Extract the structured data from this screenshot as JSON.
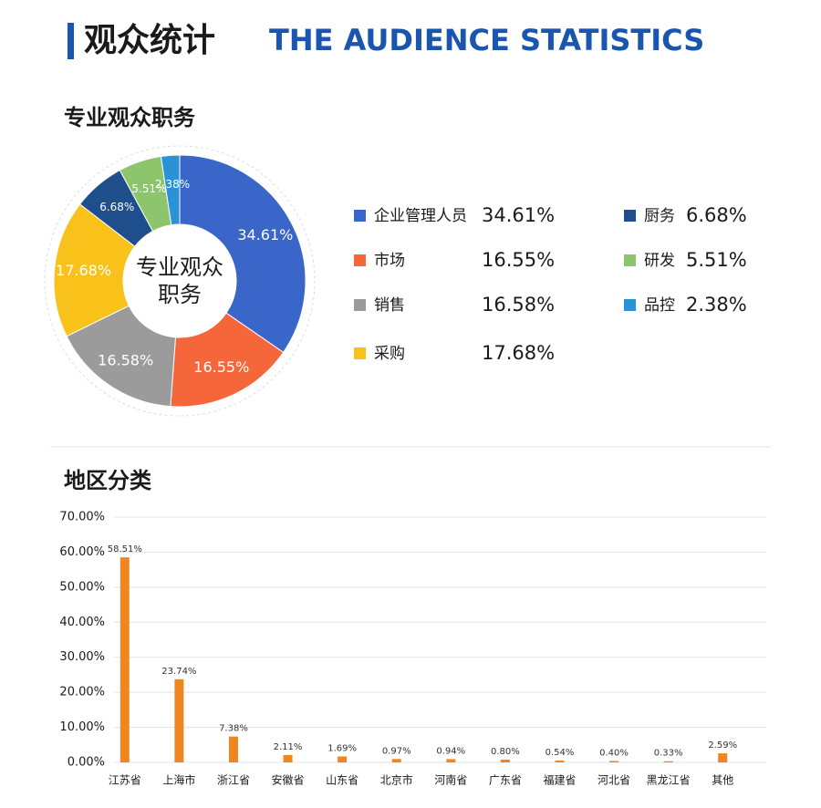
{
  "header": {
    "title_cn": "观众统计",
    "title_en": "THE AUDIENCE STATISTICS"
  },
  "chart_data": [
    {
      "type": "pie",
      "title": "专业观众职务",
      "center_label": [
        "专业观众",
        "职务"
      ],
      "categories": [
        "企业管理人员",
        "市场",
        "销售",
        "采购",
        "厨务",
        "研发",
        "品控"
      ],
      "values": [
        34.61,
        16.55,
        16.58,
        17.68,
        6.68,
        5.51,
        2.38
      ],
      "value_labels": [
        "34.61%",
        "16.55%",
        "16.58%",
        "17.68%",
        "6.68%",
        "5.51%",
        "2.38%"
      ],
      "colors": [
        "#3a66c9",
        "#f5673a",
        "#9b9b9b",
        "#f8c21a",
        "#1f4e8c",
        "#8cc56c",
        "#2a93d5"
      ]
    },
    {
      "type": "bar",
      "title": "地区分类",
      "categories": [
        "江苏省",
        "上海市",
        "浙江省",
        "安徽省",
        "山东省",
        "北京市",
        "河南省",
        "广东省",
        "福建省",
        "河北省",
        "黑龙江省",
        "其他"
      ],
      "values": [
        58.51,
        23.74,
        7.38,
        2.11,
        1.69,
        0.97,
        0.94,
        0.8,
        0.54,
        0.4,
        0.33,
        2.59
      ],
      "value_labels": [
        "58.51%",
        "23.74%",
        "7.38%",
        "2.11%",
        "1.69%",
        "0.97%",
        "0.94%",
        "0.80%",
        "0.54%",
        "0.40%",
        "0.33%",
        "2.59%"
      ],
      "color": "#f0861f",
      "ylim": [
        0,
        70
      ],
      "yticks": [
        {
          "value": 0,
          "label": "0.00%"
        },
        {
          "value": 10,
          "label": "10.00%"
        },
        {
          "value": 20,
          "label": "20.00%"
        },
        {
          "value": 30,
          "label": "30.00%"
        },
        {
          "value": 40,
          "label": "40.00%"
        },
        {
          "value": 50,
          "label": "50.00%"
        },
        {
          "value": 60,
          "label": "60.00%"
        },
        {
          "value": 70,
          "label": "70.00%"
        }
      ],
      "grid": true
    }
  ]
}
